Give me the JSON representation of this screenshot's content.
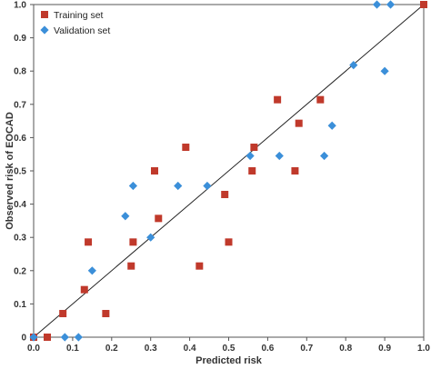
{
  "chart_data": {
    "type": "scatter",
    "xlabel": "Predicted risk",
    "ylabel": "Observed risk of EOCAD",
    "xlim": [
      0,
      1
    ],
    "ylim": [
      0,
      1
    ],
    "xticks": [
      "0.0",
      "0.1",
      "0.2",
      "0.3",
      "0.4",
      "0.5",
      "0.6",
      "0.7",
      "0.8",
      "0.9",
      "1.0"
    ],
    "yticks": [
      "0",
      "0.1",
      "0.2",
      "0.3",
      "0.4",
      "0.5",
      "0.6",
      "0.7",
      "0.8",
      "0.9",
      "1.0"
    ],
    "grid": false,
    "legend_position": "top-left",
    "reference_line": {
      "from": [
        0,
        0
      ],
      "to": [
        1,
        1
      ]
    },
    "series": [
      {
        "name": "Training set",
        "marker": "square",
        "color": "#c0392b",
        "points": [
          [
            0.0,
            0.0
          ],
          [
            0.035,
            0.0
          ],
          [
            0.075,
            0.071
          ],
          [
            0.13,
            0.143
          ],
          [
            0.14,
            0.286
          ],
          [
            0.185,
            0.071
          ],
          [
            0.25,
            0.214
          ],
          [
            0.255,
            0.286
          ],
          [
            0.31,
            0.5
          ],
          [
            0.32,
            0.357
          ],
          [
            0.39,
            0.571
          ],
          [
            0.425,
            0.214
          ],
          [
            0.49,
            0.429
          ],
          [
            0.5,
            0.286
          ],
          [
            0.56,
            0.5
          ],
          [
            0.565,
            0.571
          ],
          [
            0.625,
            0.714
          ],
          [
            0.67,
            0.5
          ],
          [
            0.68,
            0.643
          ],
          [
            0.735,
            0.714
          ],
          [
            1.0,
            1.0
          ]
        ]
      },
      {
        "name": "Validation set",
        "marker": "diamond",
        "color": "#3b8fd9",
        "points": [
          [
            0.0,
            0.0
          ],
          [
            0.08,
            0.0
          ],
          [
            0.115,
            0.0
          ],
          [
            0.15,
            0.2
          ],
          [
            0.235,
            0.364
          ],
          [
            0.255,
            0.455
          ],
          [
            0.3,
            0.3
          ],
          [
            0.37,
            0.455
          ],
          [
            0.445,
            0.455
          ],
          [
            0.555,
            0.545
          ],
          [
            0.63,
            0.545
          ],
          [
            0.745,
            0.545
          ],
          [
            0.765,
            0.636
          ],
          [
            0.82,
            0.818
          ],
          [
            0.88,
            1.0
          ],
          [
            0.9,
            0.8
          ],
          [
            0.915,
            1.0
          ]
        ]
      }
    ]
  }
}
